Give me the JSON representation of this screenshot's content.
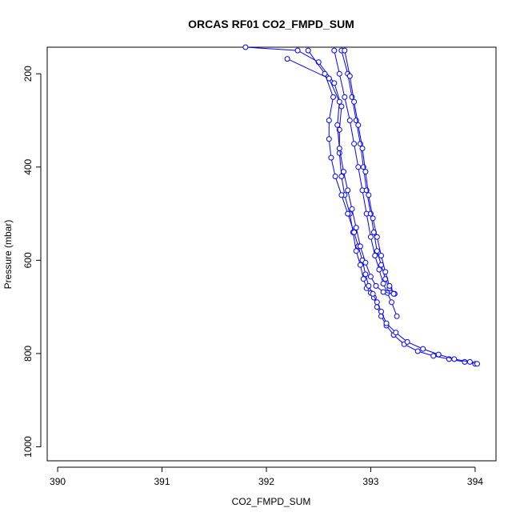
{
  "chart_data": {
    "type": "scatter",
    "title": "ORCAS RF01 CO2_FMPD_SUM",
    "xlabel": "CO2_FMPD_SUM",
    "ylabel": "Pressure (mbar)",
    "xlim": [
      389.9,
      394.2
    ],
    "ylim": [
      1030,
      143
    ],
    "y_reversed": true,
    "x_ticks": [
      390,
      391,
      392,
      393,
      394
    ],
    "x_tick_labels": [
      "390",
      "391",
      "392",
      "393",
      "394"
    ],
    "y_ticks": [
      200,
      400,
      600,
      800,
      1000
    ],
    "y_tick_labels": [
      "200",
      "400",
      "600",
      "800",
      "1000"
    ],
    "grid": false,
    "legend": "none",
    "series_color": "#0000ff",
    "series": [
      {
        "x": [
          391.8,
          392.3,
          392.5,
          392.65,
          392.72,
          392.7,
          392.7,
          392.72,
          392.75,
          392.8,
          392.83,
          392.86,
          392.9,
          392.93,
          392.96,
          393.0,
          393.03,
          393.06,
          393.1,
          393.15,
          393.22,
          393.32,
          393.45,
          393.6,
          393.75,
          393.9,
          394.0
        ],
        "y": [
          143,
          150,
          175,
          220,
          270,
          320,
          370,
          420,
          460,
          500,
          540,
          580,
          610,
          640,
          660,
          670,
          680,
          700,
          720,
          740,
          760,
          780,
          795,
          805,
          812,
          818,
          822
        ]
      },
      {
        "x": [
          392.4,
          392.56,
          392.64,
          392.6,
          392.6,
          392.62,
          392.66,
          392.72,
          392.78,
          392.84,
          392.88,
          392.92,
          392.95,
          392.98,
          393.02,
          393.06,
          393.1,
          393.15,
          393.24,
          393.35,
          393.5,
          393.65,
          393.8,
          393.95,
          394.02
        ],
        "y": [
          150,
          200,
          250,
          300,
          340,
          380,
          420,
          460,
          500,
          540,
          570,
          600,
          630,
          655,
          672,
          690,
          710,
          735,
          755,
          775,
          790,
          802,
          812,
          818,
          822
        ]
      },
      {
        "x": [
          392.65,
          392.7,
          392.75,
          392.8,
          392.84,
          392.88,
          392.92,
          392.96,
          393.0,
          393.04,
          393.08,
          393.12,
          393.16,
          393.2,
          393.25
        ],
        "y": [
          150,
          200,
          250,
          300,
          350,
          400,
          450,
          500,
          550,
          590,
          620,
          650,
          670,
          690,
          720
        ]
      },
      {
        "x": [
          392.72,
          392.78,
          392.82,
          392.86,
          392.9,
          392.93,
          392.96,
          393.0,
          393.03,
          393.06,
          393.1,
          393.14,
          393.18,
          393.22
        ],
        "y": [
          150,
          200,
          250,
          300,
          350,
          400,
          450,
          500,
          540,
          580,
          610,
          640,
          660,
          672
        ]
      },
      {
        "x": [
          392.75,
          392.8,
          392.84,
          392.88,
          392.92,
          392.95,
          392.98,
          393.02,
          393.06,
          393.1,
          393.14,
          393.18,
          393.23
        ],
        "y": [
          150,
          205,
          260,
          310,
          360,
          410,
          460,
          510,
          550,
          590,
          625,
          655,
          672
        ]
      },
      {
        "x": [
          392.2,
          392.6,
          392.7,
          392.68,
          392.7,
          392.74,
          392.78,
          392.82,
          392.86,
          392.9,
          392.95,
          393.0,
          393.05,
          393.12,
          393.22
        ],
        "y": [
          168,
          210,
          260,
          310,
          360,
          410,
          450,
          490,
          530,
          570,
          605,
          635,
          655,
          668,
          672
        ]
      }
    ]
  }
}
